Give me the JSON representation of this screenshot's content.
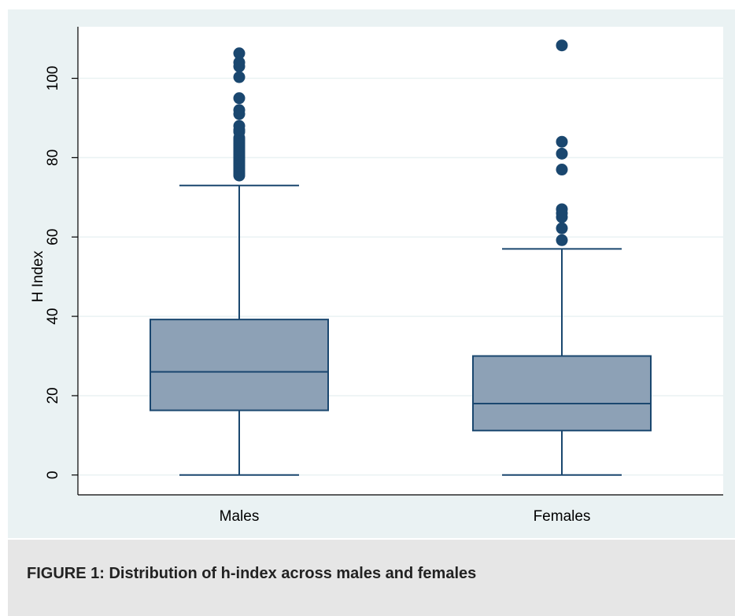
{
  "caption": "FIGURE 1: Distribution of h-index across males and females",
  "chart_data": {
    "type": "box",
    "title": "",
    "xlabel": "",
    "ylabel": "H Index",
    "ylim": [
      -5,
      113
    ],
    "yticks": [
      0,
      20,
      40,
      60,
      80,
      100
    ],
    "grid": true,
    "categories": [
      "Males",
      "Females"
    ],
    "boxes": [
      {
        "name": "Males",
        "whisker_low": 0,
        "q1": 16.3,
        "median": 26,
        "q3": 39.2,
        "whisker_high": 73,
        "outliers": [
          75.5,
          76,
          76.5,
          77,
          77.5,
          78,
          78.5,
          79,
          79.5,
          80,
          80.5,
          81,
          81.5,
          82,
          82.5,
          83,
          83.5,
          84,
          84.5,
          85,
          86.5,
          87,
          88,
          91,
          92,
          95,
          100.3,
          103,
          104,
          106.3
        ]
      },
      {
        "name": "Females",
        "whisker_low": 0,
        "q1": 11.2,
        "median": 18,
        "q3": 30,
        "whisker_high": 57,
        "outliers": [
          59.2,
          62.2,
          65,
          66,
          67,
          77,
          81,
          84,
          108.3
        ]
      }
    ],
    "colors": {
      "box_fill": "#8da1b6",
      "line": "#1a476f",
      "outlier": "#1a476f",
      "background": "#eaf2f3",
      "plot_background": "#ffffff",
      "grid": "#eaf2f3"
    }
  }
}
